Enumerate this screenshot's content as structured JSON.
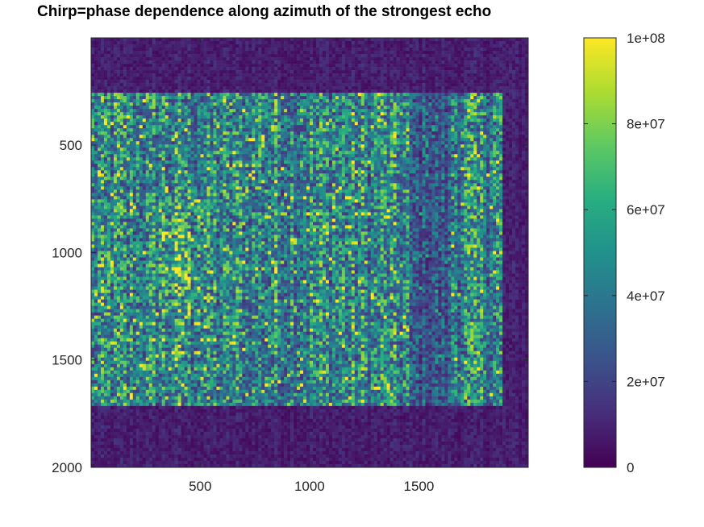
{
  "chart_data": {
    "type": "heatmap",
    "title": "Chirp=phase dependence along azimuth of the strongest echo",
    "xlabel": "",
    "ylabel": "",
    "xlim": [
      1,
      2000
    ],
    "ylim": [
      2000,
      1
    ],
    "y_axis_inverted": true,
    "x_ticks": [
      "500",
      "1000",
      "1500"
    ],
    "x_tick_values": [
      500,
      1000,
      1500
    ],
    "y_ticks": [
      "500",
      "1000",
      "1500",
      "2000"
    ],
    "y_tick_values": [
      500,
      1000,
      1500,
      2000
    ],
    "colorbar": {
      "min": 0,
      "max": 100000000,
      "ticks": [
        "0",
        "2e+07",
        "4e+07",
        "6e+07",
        "8e+07",
        "1e+08"
      ],
      "tick_values": [
        0,
        20000000,
        40000000,
        60000000,
        80000000,
        100000000
      ],
      "colormap": "viridis"
    },
    "regions": [
      {
        "description": "strong echo band",
        "x_range": [
          1,
          1880
        ],
        "y_range": [
          250,
          1710
        ],
        "level": 45000000
      },
      {
        "description": "weak background",
        "x_range": [
          1,
          2000
        ],
        "y_range": [
          1,
          2000
        ],
        "level": 8000000
      }
    ],
    "grid": false,
    "legend": "colorbar-right"
  }
}
